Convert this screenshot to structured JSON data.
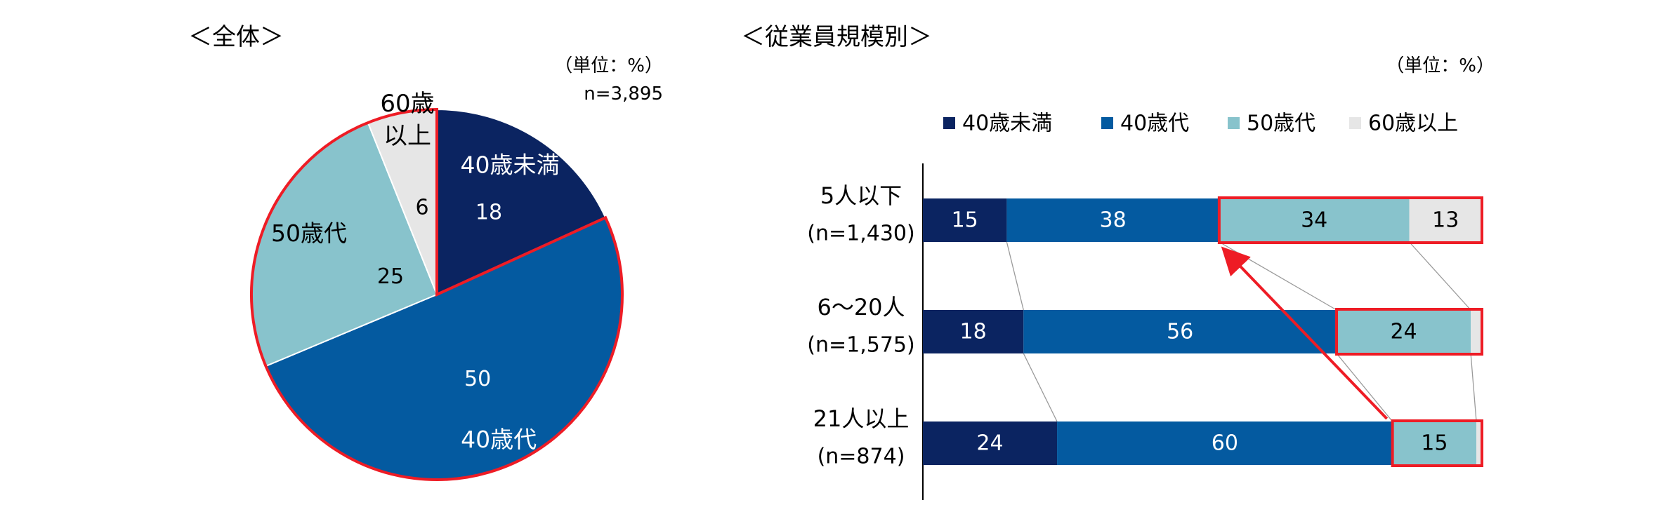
{
  "colors": {
    "under40": "#0b2461",
    "forties": "#045aa0",
    "fifties": "#88c3cc",
    "over60": "#e6e6e6",
    "highlight": "#ee1c25",
    "axis": "#000000",
    "connector": "#9a9a9a"
  },
  "chart_data": [
    {
      "type": "pie",
      "title": "＜全体＞",
      "unit_note": "（単位：%）",
      "sample_size": "n=3,895",
      "labels": [
        "40歳未満",
        "40歳代",
        "50歳代",
        "60歳以上"
      ],
      "values": [
        18,
        50,
        25,
        6
      ],
      "label_lines": [
        [
          "40歳未満"
        ],
        [
          "40歳代"
        ],
        [
          "50歳代"
        ],
        [
          "60歳",
          "以上"
        ]
      ],
      "value_labels": [
        "18",
        "50",
        "25",
        "6"
      ],
      "highlighted": [
        "40歳代",
        "50歳代",
        "60歳以上"
      ]
    },
    {
      "type": "bar",
      "orientation": "horizontal",
      "stacked": true,
      "title": "＜従業員規模別＞",
      "unit_note": "（単位：%）",
      "legend": [
        "40歳未満",
        "40歳代",
        "50歳代",
        "60歳以上"
      ],
      "legend_position": "top",
      "categories": [
        {
          "name": "5人以下",
          "n": "(n=1,430)"
        },
        {
          "name": "6～20人",
          "n": "(n=1,575)"
        },
        {
          "name": "21人以上",
          "n": "(n=874)"
        }
      ],
      "series": [
        {
          "name": "40歳未満",
          "values": [
            15,
            18,
            24
          ]
        },
        {
          "name": "40歳代",
          "values": [
            38,
            56,
            60
          ]
        },
        {
          "name": "50歳代",
          "values": [
            34,
            24,
            15
          ]
        },
        {
          "name": "60歳以上",
          "values": [
            13,
            2,
            1
          ]
        }
      ],
      "value_labels": [
        [
          "15",
          "38",
          "34",
          "13"
        ],
        [
          "18",
          "56",
          "24",
          ""
        ],
        [
          "24",
          "60",
          "15",
          ""
        ]
      ],
      "xlim": [
        0,
        100
      ],
      "highlighted_series": [
        "50歳代",
        "60歳以上"
      ]
    }
  ]
}
